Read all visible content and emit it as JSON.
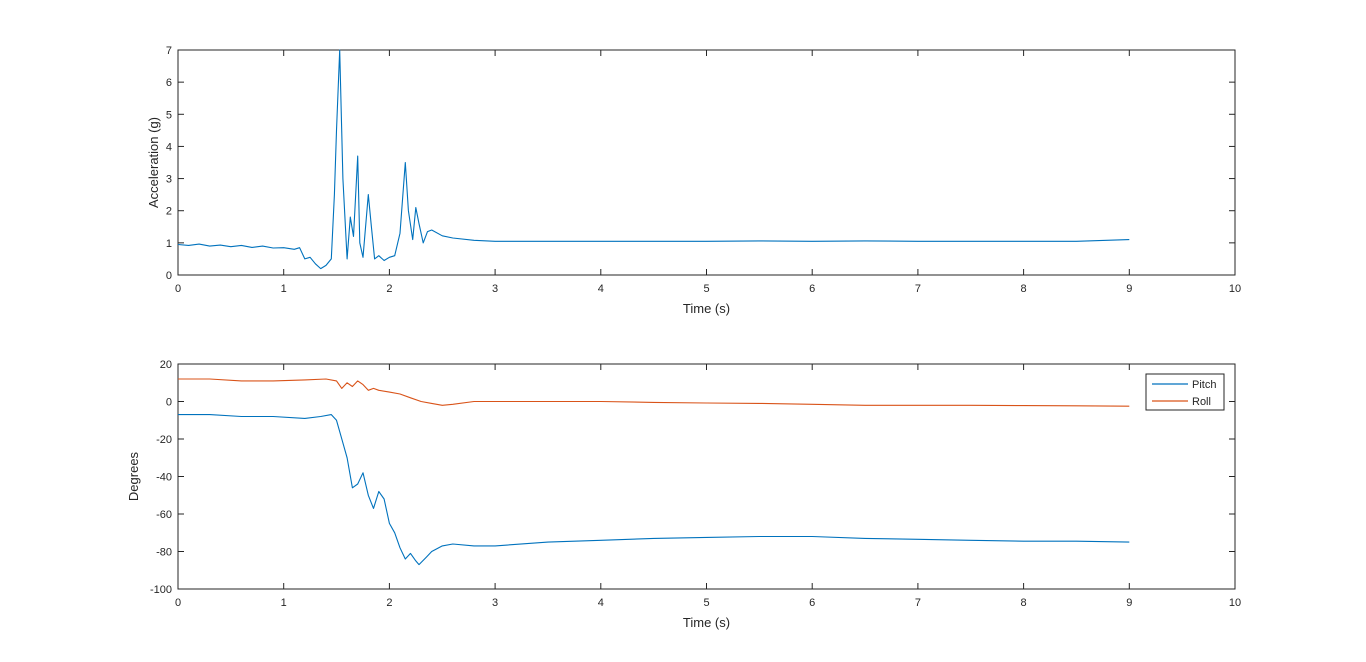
{
  "chart_data": [
    {
      "type": "line",
      "xlabel": "Time (s)",
      "ylabel": "Acceleration (g)",
      "xlim": [
        0,
        10
      ],
      "ylim": [
        0,
        7
      ],
      "xticks": [
        0,
        1,
        2,
        3,
        4,
        5,
        6,
        7,
        8,
        9,
        10
      ],
      "yticks": [
        0,
        1,
        2,
        3,
        4,
        5,
        6,
        7
      ],
      "grid": false,
      "series": [
        {
          "color": "#0072BD",
          "x": [
            0,
            0.1,
            0.2,
            0.3,
            0.4,
            0.5,
            0.6,
            0.7,
            0.8,
            0.9,
            1.0,
            1.1,
            1.15,
            1.2,
            1.25,
            1.3,
            1.35,
            1.4,
            1.45,
            1.48,
            1.5,
            1.53,
            1.56,
            1.6,
            1.63,
            1.66,
            1.7,
            1.72,
            1.75,
            1.8,
            1.83,
            1.86,
            1.9,
            1.95,
            2.0,
            2.05,
            2.1,
            2.15,
            2.18,
            2.22,
            2.25,
            2.28,
            2.32,
            2.36,
            2.4,
            2.5,
            2.6,
            2.8,
            3.0,
            3.5,
            4.0,
            4.5,
            5.0,
            5.5,
            6.0,
            6.5,
            7.0,
            7.5,
            8.0,
            8.5,
            9.0
          ],
          "y": [
            0.95,
            0.92,
            0.96,
            0.9,
            0.93,
            0.88,
            0.92,
            0.86,
            0.9,
            0.84,
            0.85,
            0.8,
            0.85,
            0.5,
            0.55,
            0.35,
            0.2,
            0.3,
            0.5,
            2.5,
            4.5,
            7.0,
            3.0,
            0.5,
            1.8,
            1.2,
            3.7,
            1.0,
            0.55,
            2.5,
            1.5,
            0.5,
            0.6,
            0.45,
            0.55,
            0.6,
            1.3,
            3.5,
            2.0,
            1.1,
            2.1,
            1.6,
            1.0,
            1.35,
            1.4,
            1.22,
            1.15,
            1.08,
            1.05,
            1.05,
            1.05,
            1.05,
            1.05,
            1.06,
            1.05,
            1.06,
            1.05,
            1.05,
            1.05,
            1.05,
            1.1
          ]
        }
      ]
    },
    {
      "type": "line",
      "xlabel": "Time (s)",
      "ylabel": "Degrees",
      "xlim": [
        0,
        10
      ],
      "ylim": [
        -100,
        20
      ],
      "xticks": [
        0,
        1,
        2,
        3,
        4,
        5,
        6,
        7,
        8,
        9,
        10
      ],
      "yticks": [
        -100,
        -80,
        -60,
        -40,
        -20,
        0,
        20
      ],
      "grid": false,
      "legend": "top-right",
      "series": [
        {
          "name": "Pitch",
          "color": "#0072BD",
          "x": [
            0,
            0.3,
            0.6,
            0.9,
            1.2,
            1.35,
            1.45,
            1.5,
            1.55,
            1.6,
            1.65,
            1.7,
            1.75,
            1.8,
            1.85,
            1.9,
            1.95,
            2.0,
            2.05,
            2.1,
            2.15,
            2.2,
            2.25,
            2.28,
            2.35,
            2.4,
            2.5,
            2.6,
            2.8,
            3.0,
            3.5,
            4.0,
            4.5,
            5.0,
            5.5,
            6.0,
            6.5,
            7.0,
            7.5,
            8.0,
            8.5,
            9.0
          ],
          "y": [
            -7,
            -7,
            -8,
            -8,
            -9,
            -8,
            -7,
            -10,
            -20,
            -30,
            -46,
            -44,
            -38,
            -50,
            -57,
            -48,
            -52,
            -65,
            -70,
            -78,
            -84,
            -81,
            -85,
            -87,
            -83,
            -80,
            -77,
            -76,
            -77,
            -77,
            -75,
            -74,
            -73,
            -72.5,
            -72,
            -72,
            -73,
            -73.5,
            -74,
            -74.5,
            -74.5,
            -75
          ]
        },
        {
          "name": "Roll",
          "color": "#D95319",
          "x": [
            0,
            0.3,
            0.6,
            0.9,
            1.2,
            1.4,
            1.5,
            1.55,
            1.6,
            1.65,
            1.7,
            1.75,
            1.8,
            1.85,
            1.9,
            2.0,
            2.1,
            2.2,
            2.3,
            2.4,
            2.5,
            2.6,
            2.8,
            3.0,
            3.5,
            4.0,
            4.5,
            5.0,
            5.5,
            6.0,
            6.5,
            7.0,
            7.5,
            8.0,
            8.5,
            9.0
          ],
          "y": [
            12,
            12,
            11,
            11,
            11.5,
            12,
            11,
            7,
            10,
            8,
            11,
            9,
            6,
            7,
            6,
            5,
            4,
            2,
            0,
            -1,
            -2,
            -1.5,
            0,
            0,
            0,
            0,
            -0.5,
            -0.8,
            -1,
            -1.5,
            -2,
            -2,
            -2,
            -2.2,
            -2.3,
            -2.5
          ]
        }
      ]
    }
  ]
}
